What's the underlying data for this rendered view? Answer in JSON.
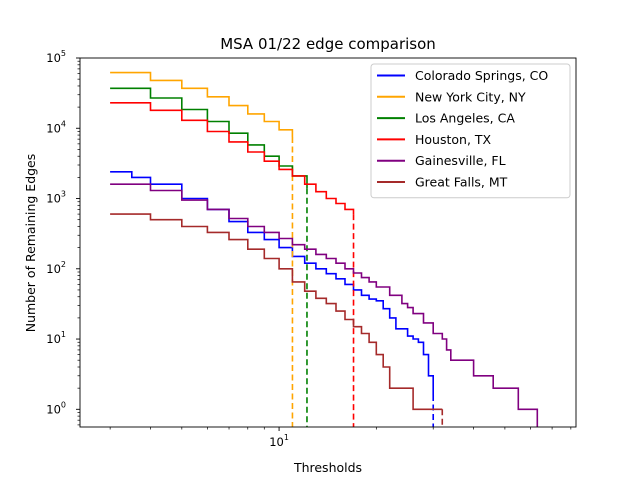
{
  "chart_data": {
    "type": "line",
    "title": "MSA 01/22 edge comparison",
    "xlabel": "Thresholds",
    "ylabel": "Number of Remaining Edges",
    "xscale": "log",
    "yscale": "log",
    "xlim": [
      2.42,
      83
    ],
    "ylim": [
      0.56,
      100000
    ],
    "x_ticks": [
      {
        "value": 10,
        "base": "10",
        "exp": "1"
      }
    ],
    "y_ticks": [
      {
        "value": 1,
        "base": "10",
        "exp": "0"
      },
      {
        "value": 10,
        "base": "10",
        "exp": "1"
      },
      {
        "value": 100,
        "base": "10",
        "exp": "2"
      },
      {
        "value": 1000,
        "base": "10",
        "exp": "3"
      },
      {
        "value": 10000,
        "base": "10",
        "exp": "4"
      },
      {
        "value": 100000,
        "base": "10",
        "exp": "5"
      }
    ],
    "legend_position": "upper right",
    "grid": false,
    "series": [
      {
        "name": "Colorado Springs, CO",
        "color": "#0000ff",
        "x": [
          3,
          3.5,
          4,
          5,
          6,
          7,
          8,
          9,
          10,
          11,
          12,
          13,
          14,
          15,
          16,
          17,
          18,
          19,
          20,
          21,
          22,
          23,
          24,
          25,
          26,
          27,
          28,
          29,
          30
        ],
        "y": [
          2400,
          2000,
          1600,
          1000,
          700,
          470,
          330,
          260,
          200,
          150,
          120,
          100,
          85,
          72,
          60,
          50,
          42,
          37,
          35,
          27,
          20,
          14,
          14,
          11,
          10,
          9,
          6,
          3,
          1.6
        ],
        "drop_x": 30
      },
      {
        "name": "New York City, NY",
        "color": "#ffa500",
        "x": [
          3,
          4,
          5,
          6,
          7,
          8,
          9,
          10,
          11
        ],
        "y": [
          62000,
          48000,
          37000,
          28000,
          21000,
          16000,
          12500,
          9500,
          7500
        ],
        "drop_x": 11
      },
      {
        "name": "Los Angeles, CA",
        "color": "#008000",
        "x": [
          3,
          4,
          5,
          6,
          7,
          8,
          9,
          10,
          11,
          12.2
        ],
        "y": [
          37000,
          27000,
          18500,
          12500,
          8500,
          5800,
          4000,
          2900,
          2100,
          1400
        ],
        "drop_x": 12.2
      },
      {
        "name": "Houston, TX",
        "color": "#ff0000",
        "x": [
          3,
          4,
          5,
          6,
          7,
          8,
          9,
          10,
          11,
          12,
          13,
          14,
          15,
          16,
          17
        ],
        "y": [
          23000,
          18000,
          13000,
          9000,
          6400,
          4600,
          3400,
          2600,
          2100,
          1600,
          1250,
          1000,
          850,
          700,
          600
        ],
        "drop_x": 17
      },
      {
        "name": "Gainesville, FL",
        "color": "#800080",
        "x": [
          3,
          4,
          5,
          6,
          7,
          8,
          9,
          10,
          11,
          12,
          13,
          14,
          15,
          16,
          17,
          18,
          19,
          20,
          22,
          24,
          25,
          26,
          28,
          30,
          32,
          33,
          34,
          40,
          42,
          44,
          46,
          50,
          55,
          60,
          63
        ],
        "y": [
          1600,
          1300,
          950,
          700,
          520,
          400,
          330,
          270,
          220,
          190,
          160,
          140,
          120,
          100,
          87,
          75,
          65,
          55,
          42,
          32,
          28,
          23,
          17,
          12,
          10,
          7,
          5,
          3,
          3,
          3,
          2,
          2,
          1,
          1,
          0.56
        ],
        "drop_x": null
      },
      {
        "name": "Great Falls, MT",
        "color": "#a52a2a",
        "x": [
          3,
          4,
          5,
          6,
          7,
          8,
          9,
          10,
          11,
          12,
          13,
          14,
          15,
          16,
          17,
          18,
          19,
          20,
          21,
          22,
          25,
          26,
          27,
          28,
          30,
          32
        ],
        "y": [
          600,
          500,
          400,
          330,
          260,
          190,
          140,
          100,
          65,
          48,
          38,
          32,
          25,
          19,
          15,
          12,
          9,
          6,
          4,
          2,
          2,
          1,
          1,
          1,
          1,
          1
        ],
        "drop_x": 32
      }
    ]
  }
}
